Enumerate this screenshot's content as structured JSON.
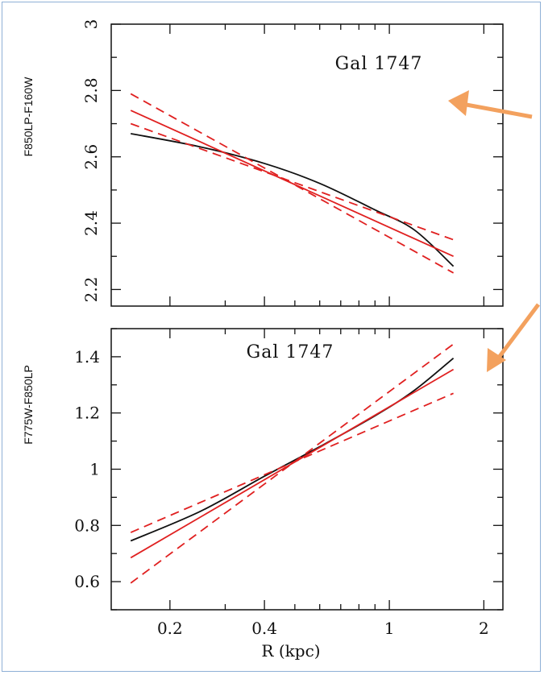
{
  "annotation_color": "#f3a15e",
  "chart_data": [
    {
      "type": "line",
      "title": "Gal 1747",
      "ylabel": "F850LP-F160W",
      "xlabel": "",
      "x_scale": "log",
      "xlim": [
        0.13,
        2.3
      ],
      "ylim": [
        2.15,
        3.0
      ],
      "yticks": [
        2.2,
        2.4,
        2.6,
        2.8,
        3.0
      ],
      "ytick_labels": [
        "2.2",
        "2.4",
        "2.6",
        "2.8",
        "3"
      ],
      "series": [
        {
          "color": "#111111",
          "style": "solid",
          "points": [
            [
              0.15,
              2.67
            ],
            [
              0.25,
              2.63
            ],
            [
              0.4,
              2.58
            ],
            [
              0.6,
              2.52
            ],
            [
              0.9,
              2.44
            ],
            [
              1.2,
              2.38
            ],
            [
              1.6,
              2.27
            ]
          ]
        },
        {
          "color": "#e02020",
          "style": "solid",
          "points": [
            [
              0.15,
              2.74
            ],
            [
              1.6,
              2.3
            ]
          ]
        },
        {
          "color": "#e02020",
          "style": "dashed",
          "points": [
            [
              0.15,
              2.79
            ],
            [
              1.6,
              2.25
            ]
          ]
        },
        {
          "color": "#e02020",
          "style": "dashed",
          "points": [
            [
              0.15,
              2.7
            ],
            [
              1.6,
              2.35
            ]
          ]
        }
      ]
    },
    {
      "type": "line",
      "title": "Gal 1747",
      "ylabel": "F775W-F850LP",
      "xlabel": "R (kpc)",
      "x_scale": "log",
      "xlim": [
        0.13,
        2.3
      ],
      "ylim": [
        0.5,
        1.5
      ],
      "xticks": [
        0.2,
        0.4,
        1,
        2
      ],
      "xtick_labels": [
        "0.2",
        "0.4",
        "1",
        "2"
      ],
      "yticks": [
        0.6,
        0.8,
        1.0,
        1.2,
        1.4
      ],
      "ytick_labels": [
        "0.6",
        "0.8",
        "1",
        "1.2",
        "1.4"
      ],
      "series": [
        {
          "color": "#111111",
          "style": "solid",
          "points": [
            [
              0.15,
              0.745
            ],
            [
              0.25,
              0.85
            ],
            [
              0.4,
              0.975
            ],
            [
              0.6,
              1.08
            ],
            [
              0.9,
              1.19
            ],
            [
              1.2,
              1.28
            ],
            [
              1.6,
              1.395
            ]
          ]
        },
        {
          "color": "#e02020",
          "style": "solid",
          "points": [
            [
              0.15,
              0.685
            ],
            [
              1.6,
              1.355
            ]
          ]
        },
        {
          "color": "#e02020",
          "style": "dashed",
          "points": [
            [
              0.15,
              0.595
            ],
            [
              1.6,
              1.445
            ]
          ]
        },
        {
          "color": "#e02020",
          "style": "dashed",
          "points": [
            [
              0.15,
              0.775
            ],
            [
              1.6,
              1.27
            ]
          ]
        }
      ]
    }
  ]
}
